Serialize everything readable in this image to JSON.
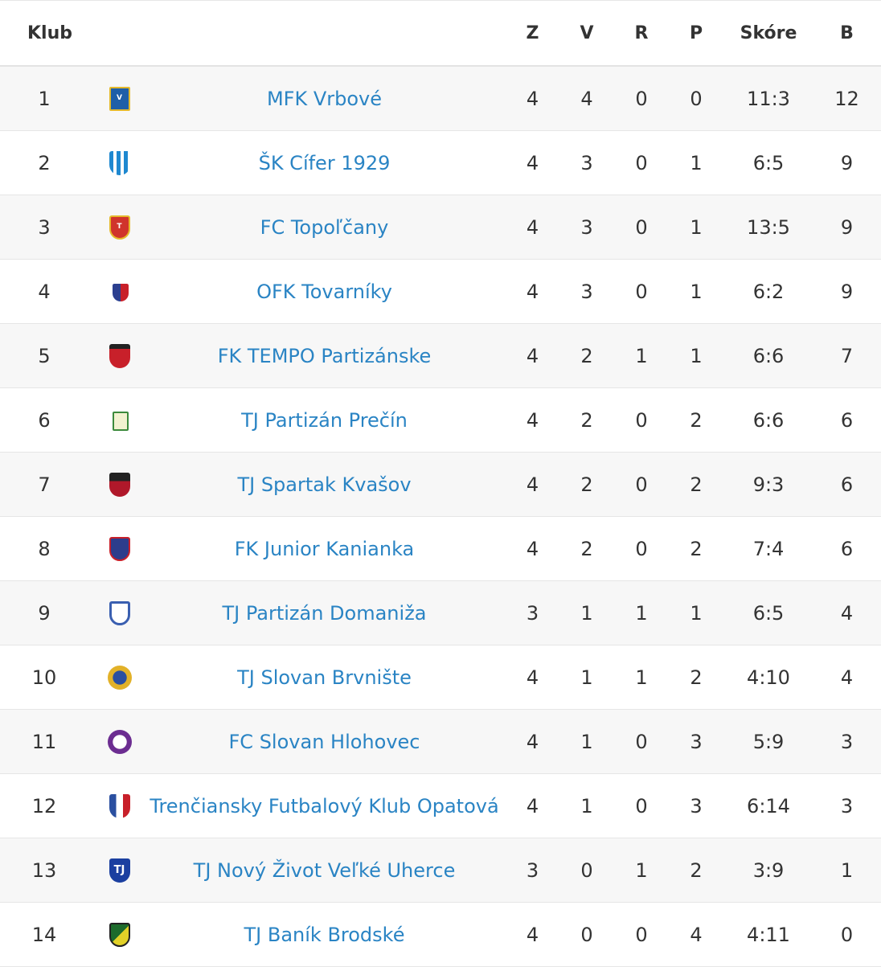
{
  "headers": {
    "club": "Klub",
    "played": "Z",
    "won": "V",
    "draw": "R",
    "lost": "P",
    "score": "Skóre",
    "points": "B"
  },
  "rows": [
    {
      "pos": "1",
      "team": "MFK Vrbové",
      "z": "4",
      "v": "4",
      "r": "0",
      "p": "0",
      "score": "11:3",
      "pts": "12",
      "logo_icon": "club-crest-icon",
      "logo_color": "#1f5fa8"
    },
    {
      "pos": "2",
      "team": "ŠK Cífer 1929",
      "z": "4",
      "v": "3",
      "r": "0",
      "p": "1",
      "score": "6:5",
      "pts": "9",
      "logo_icon": "club-crest-icon",
      "logo_color": "#1e88d0"
    },
    {
      "pos": "3",
      "team": "FC Topoľčany",
      "z": "4",
      "v": "3",
      "r": "0",
      "p": "1",
      "score": "13:5",
      "pts": "9",
      "logo_icon": "club-crest-icon",
      "logo_color": "#d0342c"
    },
    {
      "pos": "4",
      "team": "OFK Tovarníky",
      "z": "4",
      "v": "3",
      "r": "0",
      "p": "1",
      "score": "6:2",
      "pts": "9",
      "logo_icon": "club-crest-icon",
      "logo_color": "#2c3f8f"
    },
    {
      "pos": "5",
      "team": "FK TEMPO Partizánske",
      "z": "4",
      "v": "2",
      "r": "1",
      "p": "1",
      "score": "6:6",
      "pts": "7",
      "logo_icon": "club-crest-icon",
      "logo_color": "#c8202a"
    },
    {
      "pos": "6",
      "team": "TJ Partizán Prečín",
      "z": "4",
      "v": "2",
      "r": "0",
      "p": "2",
      "score": "6:6",
      "pts": "6",
      "logo_icon": "club-crest-icon",
      "logo_color": "#3c8a3c"
    },
    {
      "pos": "7",
      "team": "TJ Spartak Kvašov",
      "z": "4",
      "v": "2",
      "r": "0",
      "p": "2",
      "score": "9:3",
      "pts": "6",
      "logo_icon": "club-crest-icon",
      "logo_color": "#b0182a"
    },
    {
      "pos": "8",
      "team": "FK Junior Kanianka",
      "z": "4",
      "v": "2",
      "r": "0",
      "p": "2",
      "score": "7:4",
      "pts": "6",
      "logo_icon": "club-crest-icon",
      "logo_color": "#2d3d8c"
    },
    {
      "pos": "9",
      "team": "TJ Partizán Domaniža",
      "z": "3",
      "v": "1",
      "r": "1",
      "p": "1",
      "score": "6:5",
      "pts": "4",
      "logo_icon": "club-crest-icon",
      "logo_color": "#3a5fb0"
    },
    {
      "pos": "10",
      "team": "TJ Slovan Brvnište",
      "z": "4",
      "v": "1",
      "r": "1",
      "p": "2",
      "score": "4:10",
      "pts": "4",
      "logo_icon": "club-crest-icon",
      "logo_color": "#e2b128"
    },
    {
      "pos": "11",
      "team": "FC Slovan Hlohovec",
      "z": "4",
      "v": "1",
      "r": "0",
      "p": "3",
      "score": "5:9",
      "pts": "3",
      "logo_icon": "club-crest-icon",
      "logo_color": "#6c2d91"
    },
    {
      "pos": "12",
      "team": "Trenčiansky Futbalový Klub Opatová",
      "z": "4",
      "v": "1",
      "r": "0",
      "p": "3",
      "score": "6:14",
      "pts": "3",
      "logo_icon": "club-crest-icon",
      "logo_color": "#2a4fa0"
    },
    {
      "pos": "13",
      "team": "TJ Nový Život Veľké Uherce",
      "z": "3",
      "v": "0",
      "r": "1",
      "p": "2",
      "score": "3:9",
      "pts": "1",
      "logo_icon": "club-crest-icon",
      "logo_color": "#1b3fa0"
    },
    {
      "pos": "14",
      "team": "TJ Baník Brodské",
      "z": "4",
      "v": "0",
      "r": "0",
      "p": "4",
      "score": "4:11",
      "pts": "0",
      "logo_icon": "club-crest-icon",
      "logo_color": "#1d6b2c"
    }
  ],
  "colors": {
    "link": "#2a84c4",
    "text": "#333333",
    "row_alt": "#f7f7f7",
    "border": "#e6e6e6"
  }
}
